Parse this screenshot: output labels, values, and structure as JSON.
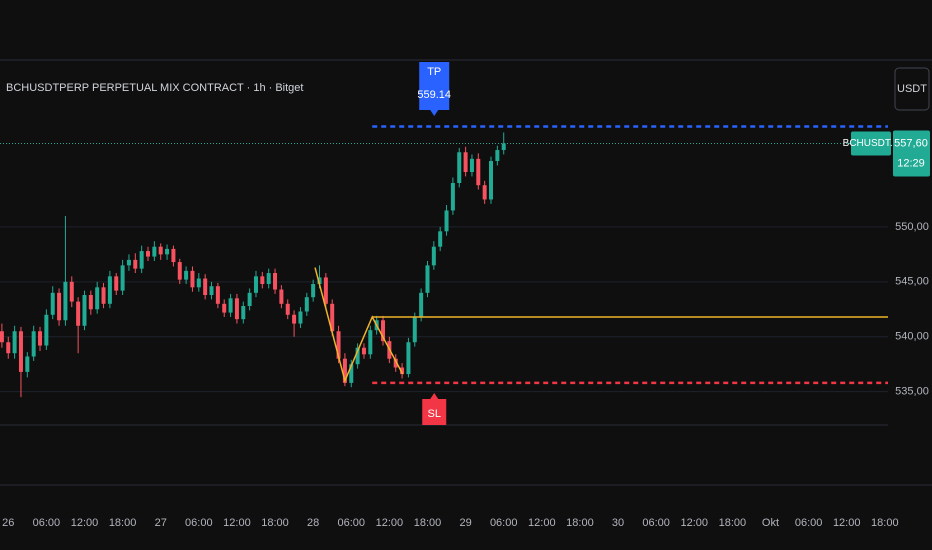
{
  "chart_data": {
    "type": "candlestick",
    "title": "BCHUSDTPERP PERPETUAL MIX CONTRACT · 1h · Bitget",
    "currency_button": "USDT",
    "up_color": "#22ab94",
    "down_color": "#f7525f",
    "open": [
      540.5,
      539.5,
      538.5,
      540.5,
      536.8,
      538.2,
      540.5,
      539.2,
      542.0,
      544.0,
      541.5,
      545.0,
      543.2,
      541.0,
      543.8,
      542.5,
      544.5,
      543.0,
      545.5,
      544.2,
      546.5,
      547.0,
      546.2,
      547.8,
      547.3,
      548.2,
      547.5,
      548.0,
      546.8,
      545.2,
      546.0,
      544.5,
      545.3,
      543.8,
      544.6,
      543.0,
      542.2,
      543.5,
      541.6,
      542.8,
      544.0,
      545.5,
      544.8,
      545.8,
      544.3,
      543.0,
      542.0,
      541.2,
      542.3,
      543.6,
      544.8,
      545.4,
      543.0,
      540.5,
      538.0,
      535.8,
      537.5,
      539.0,
      538.4,
      540.6,
      541.5,
      539.6,
      538.0,
      537.2,
      536.6,
      539.5,
      541.8,
      544.0,
      546.5,
      548.2,
      549.6,
      551.5,
      554.0,
      556.8,
      555.0,
      556.2,
      553.8,
      552.5,
      556.0,
      557.0
    ],
    "high": [
      541.2,
      540.0,
      541.0,
      540.9,
      538.6,
      541.0,
      540.9,
      542.5,
      544.6,
      544.4,
      551.0,
      545.5,
      543.6,
      544.2,
      544.2,
      545.0,
      544.9,
      546.0,
      545.8,
      547.0,
      547.5,
      547.6,
      548.3,
      548.2,
      548.7,
      548.5,
      548.4,
      548.3,
      547.1,
      546.4,
      546.4,
      545.8,
      545.7,
      545.0,
      544.9,
      543.4,
      543.9,
      543.9,
      543.2,
      544.4,
      546.0,
      545.9,
      546.2,
      546.2,
      544.7,
      543.4,
      542.4,
      542.7,
      544.0,
      545.2,
      546.5,
      545.8,
      543.4,
      541.0,
      538.5,
      537.9,
      539.4,
      539.4,
      541.0,
      541.9,
      541.9,
      540.0,
      538.4,
      537.6,
      539.9,
      542.2,
      544.4,
      546.9,
      548.7,
      550.0,
      552.0,
      554.5,
      557.2,
      557.3,
      556.6,
      556.7,
      554.2,
      556.4,
      557.4,
      558.6
    ],
    "low": [
      539.0,
      538.0,
      538.0,
      534.5,
      536.3,
      537.8,
      538.7,
      538.8,
      541.6,
      541.0,
      541.0,
      542.7,
      538.5,
      540.6,
      542.0,
      542.1,
      542.6,
      542.6,
      543.8,
      543.8,
      546.0,
      545.8,
      545.8,
      546.9,
      546.9,
      547.0,
      547.0,
      546.4,
      544.8,
      544.8,
      544.1,
      544.1,
      543.4,
      543.4,
      542.6,
      541.8,
      541.8,
      541.2,
      541.2,
      542.4,
      543.6,
      544.4,
      544.4,
      543.9,
      542.6,
      541.6,
      540.0,
      540.8,
      541.9,
      543.2,
      544.4,
      542.6,
      540.1,
      537.6,
      535.5,
      535.4,
      537.1,
      538.0,
      538.0,
      540.2,
      539.2,
      537.6,
      536.8,
      536.2,
      536.3,
      539.1,
      541.4,
      543.6,
      546.1,
      547.8,
      549.2,
      551.1,
      553.6,
      554.6,
      554.6,
      553.4,
      552.1,
      552.1,
      555.6,
      556.6
    ],
    "close": [
      539.5,
      538.5,
      540.5,
      536.8,
      538.2,
      540.5,
      539.2,
      542.0,
      544.0,
      541.5,
      545.0,
      543.2,
      541.0,
      543.8,
      542.5,
      544.5,
      543.0,
      545.5,
      544.2,
      546.5,
      547.0,
      546.2,
      547.8,
      547.3,
      548.2,
      547.5,
      548.0,
      546.8,
      545.2,
      546.0,
      544.5,
      545.3,
      543.8,
      544.6,
      543.0,
      542.2,
      543.5,
      541.6,
      542.8,
      544.0,
      545.5,
      544.8,
      545.8,
      544.3,
      543.0,
      542.0,
      541.2,
      542.3,
      543.6,
      544.8,
      545.4,
      543.0,
      540.5,
      538.0,
      535.8,
      537.5,
      539.0,
      538.4,
      540.6,
      541.5,
      539.6,
      538.0,
      537.2,
      536.6,
      539.5,
      541.8,
      544.0,
      546.5,
      548.2,
      549.6,
      551.5,
      554.0,
      556.8,
      555.0,
      556.2,
      553.8,
      552.5,
      556.0,
      557.0,
      557.6
    ],
    "xlim": [
      -0.3,
      139.5
    ],
    "xticks": [
      {
        "value": 1,
        "label": "26"
      },
      {
        "value": 7,
        "label": "06:00"
      },
      {
        "value": 13,
        "label": "12:00"
      },
      {
        "value": 19,
        "label": "18:00"
      },
      {
        "value": 25,
        "label": "27"
      },
      {
        "value": 31,
        "label": "06:00"
      },
      {
        "value": 37,
        "label": "12:00"
      },
      {
        "value": 43,
        "label": "18:00"
      },
      {
        "value": 49,
        "label": "28"
      },
      {
        "value": 55,
        "label": "06:00"
      },
      {
        "value": 61,
        "label": "12:00"
      },
      {
        "value": 67,
        "label": "18:00"
      },
      {
        "value": 73,
        "label": "29"
      },
      {
        "value": 79,
        "label": "06:00"
      },
      {
        "value": 85,
        "label": "12:00"
      },
      {
        "value": 91,
        "label": "18:00"
      },
      {
        "value": 97,
        "label": "30"
      },
      {
        "value": 103,
        "label": "06:00"
      },
      {
        "value": 109,
        "label": "12:00"
      },
      {
        "value": 115,
        "label": "18:00"
      },
      {
        "value": 121,
        "label": "Okt"
      },
      {
        "value": 127,
        "label": "06:00"
      },
      {
        "value": 133,
        "label": "12:00"
      },
      {
        "value": 139,
        "label": "18:00"
      }
    ],
    "ylim": [
      526.5,
      565.2
    ],
    "yticks": [
      {
        "value": 535,
        "label": "535,00"
      },
      {
        "value": 540,
        "label": "540,00"
      },
      {
        "value": 545,
        "label": "545,00"
      },
      {
        "value": 550,
        "label": "550,00"
      }
    ],
    "grid": true,
    "take_profit": {
      "label": "TP",
      "value": 559.14,
      "color": "#2962ff",
      "start": 58.3
    },
    "stop_loss": {
      "label": "SL",
      "value": 535.8,
      "color": "#f23645",
      "start": 58.3
    },
    "zigzag": {
      "color": "#f0b429",
      "x": [
        49.3,
        54.0,
        58.3,
        63.1
      ],
      "y": [
        546.3,
        536.0,
        541.8,
        536.6
      ],
      "level": 541.8
    },
    "last_price": {
      "symbol": "BCHUSDT.P",
      "value": 557.6,
      "label": "557,60",
      "countdown": "12:29"
    }
  }
}
